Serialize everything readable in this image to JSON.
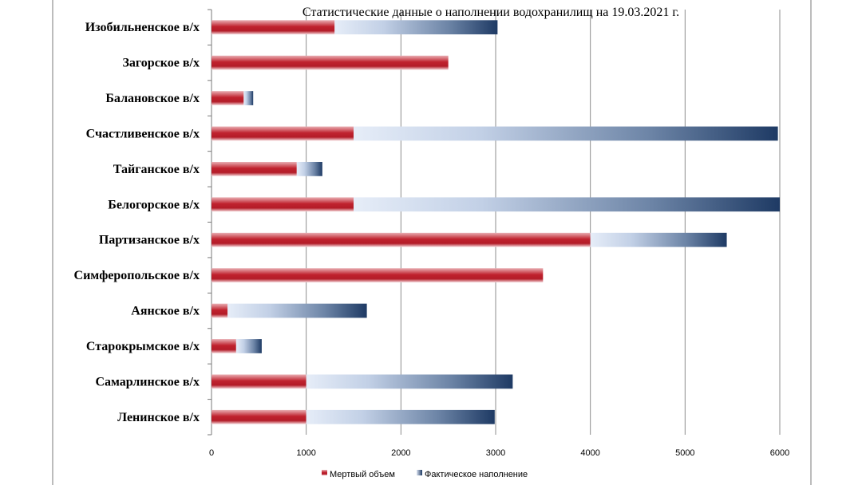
{
  "chart_data": {
    "type": "bar",
    "orientation": "horizontal",
    "stacked": true,
    "title": "Статистические данные о наполнении водохранилищ на 19.03.2021 г.",
    "categories": [
      "Изобильненское в/х",
      "Загорское в/х",
      "Балановское в/х",
      "Счастливенское в/х",
      "Тайганское в/х",
      "Белогорское в/х",
      "Партизанское в/х",
      "Симферопольское в/х",
      "Аянское в/х",
      "Старокрымское в/х",
      "Самарлинское в/х",
      "Ленинское в/х"
    ],
    "series": [
      {
        "name": "Мертвый объем",
        "color": "#c0222e",
        "values": [
          1300,
          2500,
          340,
          1500,
          900,
          1500,
          4000,
          3500,
          170,
          260,
          1000,
          1000
        ]
      },
      {
        "name": "Фактическое наполнение",
        "color": "#1f3f6e",
        "values": [
          1720,
          0,
          100,
          4480,
          270,
          4500,
          1440,
          0,
          1470,
          270,
          2180,
          1990
        ]
      }
    ],
    "xlim": [
      0,
      6000
    ],
    "xticks": [
      "0",
      "1000",
      "2000",
      "3000",
      "4000",
      "5000",
      "6000"
    ],
    "grid": true,
    "legend_position": "bottom"
  }
}
